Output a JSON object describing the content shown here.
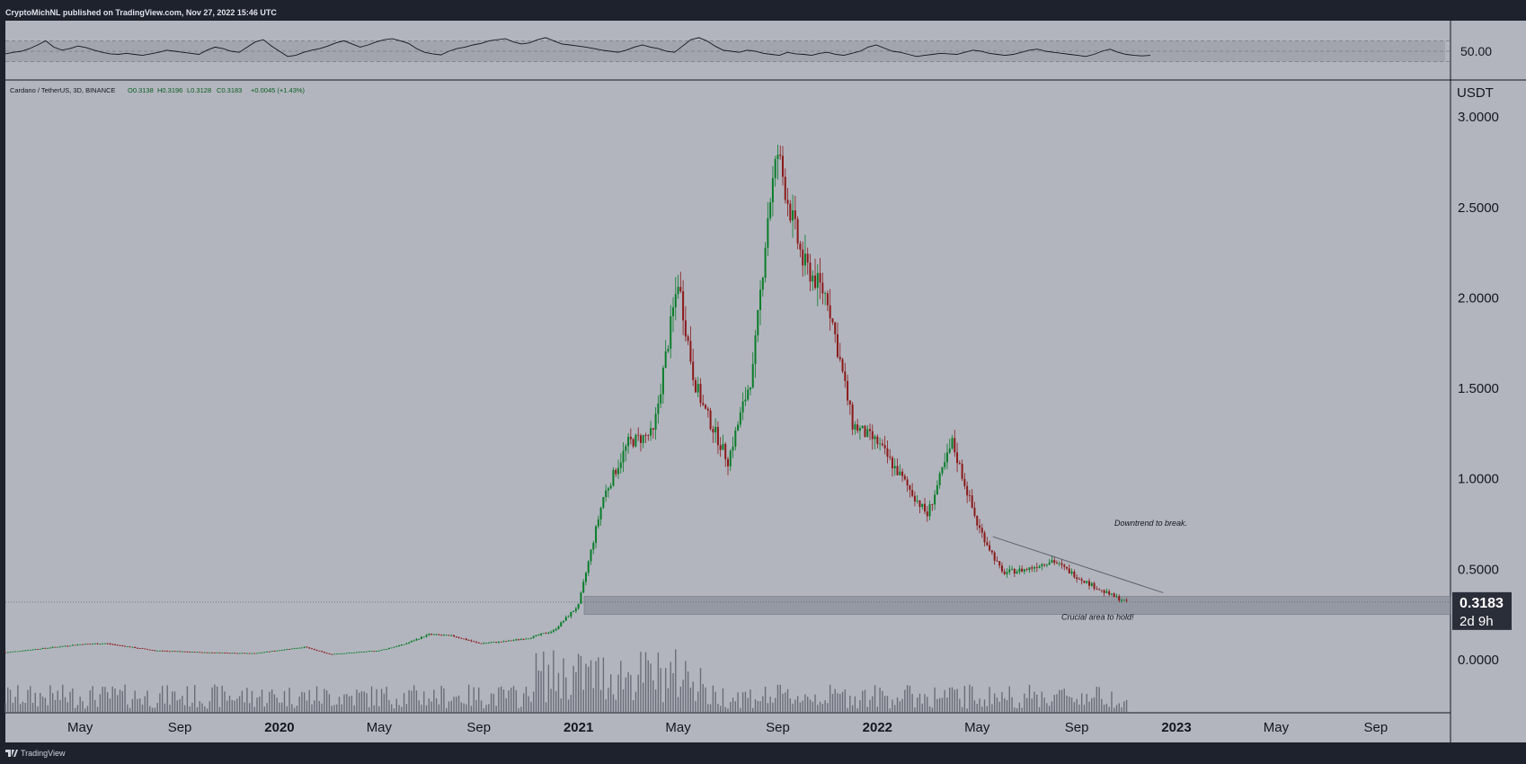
{
  "header": {
    "text": "CryptoMichNL published on TradingView.com, Nov 27, 2022 15:46 UTC"
  },
  "footer": {
    "brand": "TradingView"
  },
  "legend": {
    "symbol": "Cardano / TetherUS, 3D, BINANCE",
    "o": "O0.3138",
    "h": "H0.3196",
    "l": "L0.3128",
    "c": "C0.3183",
    "change": "+0.0045 (+1.43%)"
  },
  "colors": {
    "background": "#b2b5be",
    "panel_border": "#131722",
    "up": "#0a7d2a",
    "down": "#8b1a1a",
    "band": "#9598a1",
    "line": "#131722"
  },
  "chart_data": [
    {
      "type": "line",
      "name": "rsi_panel",
      "ylabel": "",
      "ticks": [
        "50.00"
      ],
      "ylim": [
        0,
        100
      ],
      "band": [
        30,
        70
      ],
      "x_range": [
        "2019-02",
        "2022-11"
      ],
      "values": [
        45,
        48,
        50,
        55,
        62,
        70,
        58,
        52,
        55,
        60,
        57,
        52,
        48,
        45,
        44,
        46,
        44,
        42,
        45,
        48,
        52,
        50,
        48,
        46,
        44,
        52,
        58,
        55,
        50,
        48,
        58,
        68,
        72,
        60,
        50,
        40,
        42,
        48,
        52,
        55,
        60,
        66,
        70,
        64,
        58,
        62,
        68,
        72,
        74,
        70,
        65,
        55,
        48,
        45,
        43,
        50,
        55,
        58,
        62,
        65,
        70,
        72,
        74,
        68,
        64,
        66,
        72,
        76,
        70,
        64,
        62,
        60,
        58,
        55,
        52,
        50,
        48,
        52,
        58,
        62,
        58,
        55,
        50,
        48,
        60,
        72,
        76,
        70,
        60,
        52,
        50,
        48,
        52,
        50,
        46,
        44,
        42,
        48,
        45,
        44,
        42,
        46,
        48,
        44,
        42,
        46,
        50,
        58,
        62,
        56,
        50,
        48,
        44,
        40,
        42,
        44,
        46,
        45,
        44,
        48,
        52,
        50,
        46,
        44,
        42,
        44,
        48,
        52,
        54,
        50,
        48,
        46,
        44,
        42,
        40,
        44,
        50,
        54,
        48,
        44,
        42,
        41,
        42
      ]
    },
    {
      "type": "candlestick",
      "name": "price",
      "ylabel": "USDT",
      "yticks": [
        "3.0000",
        "2.5000",
        "2.0000",
        "1.5000",
        "1.0000",
        "0.5000",
        "0.0000"
      ],
      "ylim": [
        -0.2937,
        3.2
      ],
      "last_price": "0.3183",
      "countdown": "2d 9h",
      "xticks": [
        "May",
        "Sep",
        "2020",
        "May",
        "Sep",
        "2021",
        "May",
        "Sep",
        "2022",
        "May",
        "Sep",
        "2023",
        "May",
        "Sep"
      ],
      "x_range": [
        "2019-02",
        "2023-12"
      ],
      "points": [
        [
          "2019-02",
          0.04
        ],
        [
          "2019-05",
          0.085
        ],
        [
          "2019-06",
          0.09
        ],
        [
          "2019-08",
          0.05
        ],
        [
          "2019-10",
          0.04
        ],
        [
          "2019-12",
          0.035
        ],
        [
          "2020-02",
          0.07
        ],
        [
          "2020-03",
          0.03
        ],
        [
          "2020-05",
          0.05
        ],
        [
          "2020-06",
          0.085
        ],
        [
          "2020-07",
          0.14
        ],
        [
          "2020-08",
          0.13
        ],
        [
          "2020-09",
          0.09
        ],
        [
          "2020-10",
          0.1
        ],
        [
          "2020-11",
          0.12
        ],
        [
          "2020-12",
          0.16
        ],
        [
          "2021-01",
          0.3
        ],
        [
          "2021-02",
          0.9
        ],
        [
          "2021-03",
          1.2
        ],
        [
          "2021-04",
          1.25
        ],
        [
          "2021-05",
          2.1
        ],
        [
          "2021-05-20",
          1.55
        ],
        [
          "2021-06",
          1.4
        ],
        [
          "2021-07",
          1.1
        ],
        [
          "2021-08",
          1.6
        ],
        [
          "2021-08-20",
          2.5
        ],
        [
          "2021-09",
          2.8
        ],
        [
          "2021-09-15",
          2.5
        ],
        [
          "2021-10",
          2.2
        ],
        [
          "2021-11",
          2.0
        ],
        [
          "2021-12",
          1.3
        ],
        [
          "2022-01",
          1.2
        ],
        [
          "2022-02",
          1.0
        ],
        [
          "2022-03",
          0.8
        ],
        [
          "2022-04",
          1.2
        ],
        [
          "2022-05",
          0.75
        ],
        [
          "2022-06",
          0.48
        ],
        [
          "2022-07",
          0.5
        ],
        [
          "2022-08",
          0.55
        ],
        [
          "2022-09",
          0.46
        ],
        [
          "2022-10",
          0.38
        ],
        [
          "2022-11",
          0.3183
        ]
      ],
      "annotations": {
        "support_zone": [
          0.25,
          0.35
        ],
        "support_label": "Crucial area to hold!",
        "trendline": [
          [
            "2022-05-20",
            0.68
          ],
          [
            "2022-12-15",
            0.37
          ]
        ],
        "trend_label": "Downtrend to break."
      }
    }
  ]
}
